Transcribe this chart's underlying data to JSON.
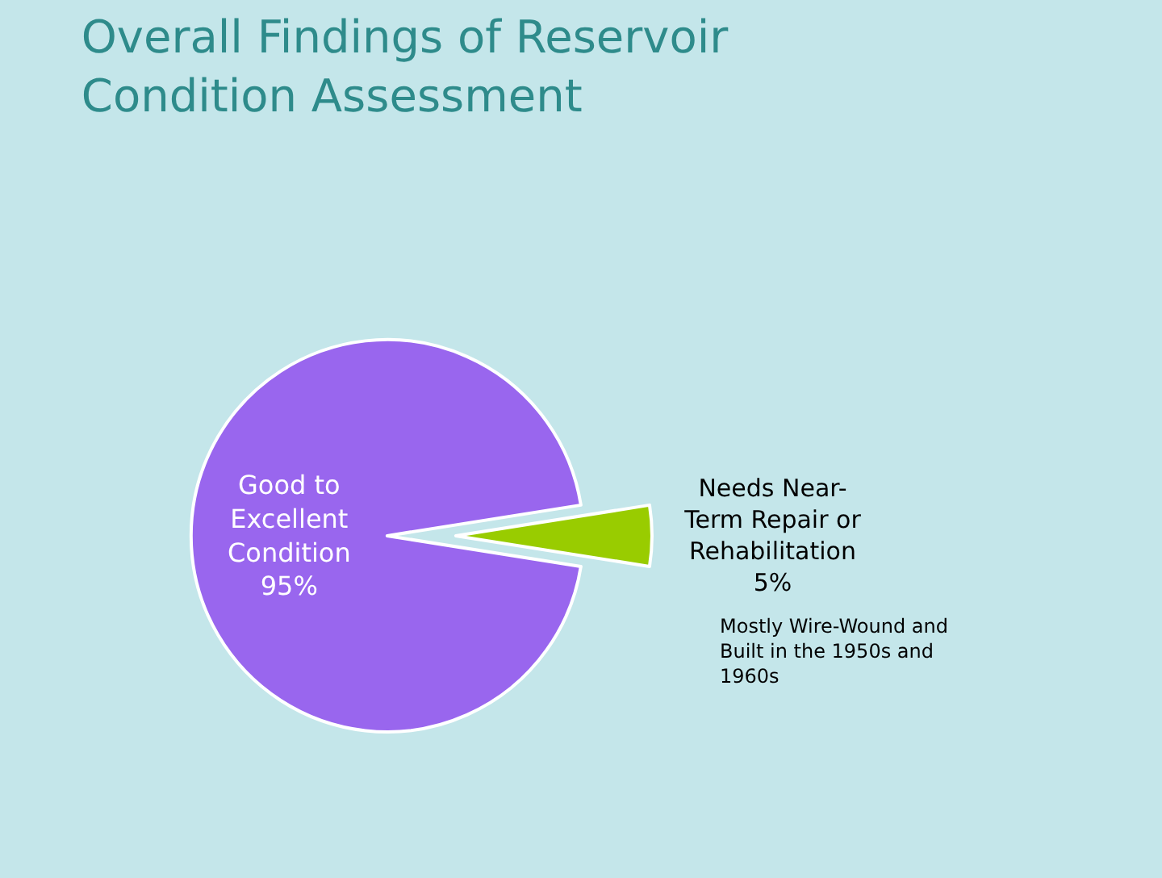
{
  "chart_data": {
    "type": "pie",
    "title": "Overall Findings of Reservoir Condition Assessment",
    "categories": [
      "Good to Excellent Condition",
      "Needs Near-Term Repair or Rehabilitation"
    ],
    "values": [
      95,
      5
    ],
    "value_labels": [
      "95%",
      "5%"
    ],
    "colors": [
      "#9966ee",
      "#99cc00"
    ],
    "annotations": [
      "Mostly Wire-Wound and Built in the 1950s and 1960s"
    ],
    "legend": false
  }
}
